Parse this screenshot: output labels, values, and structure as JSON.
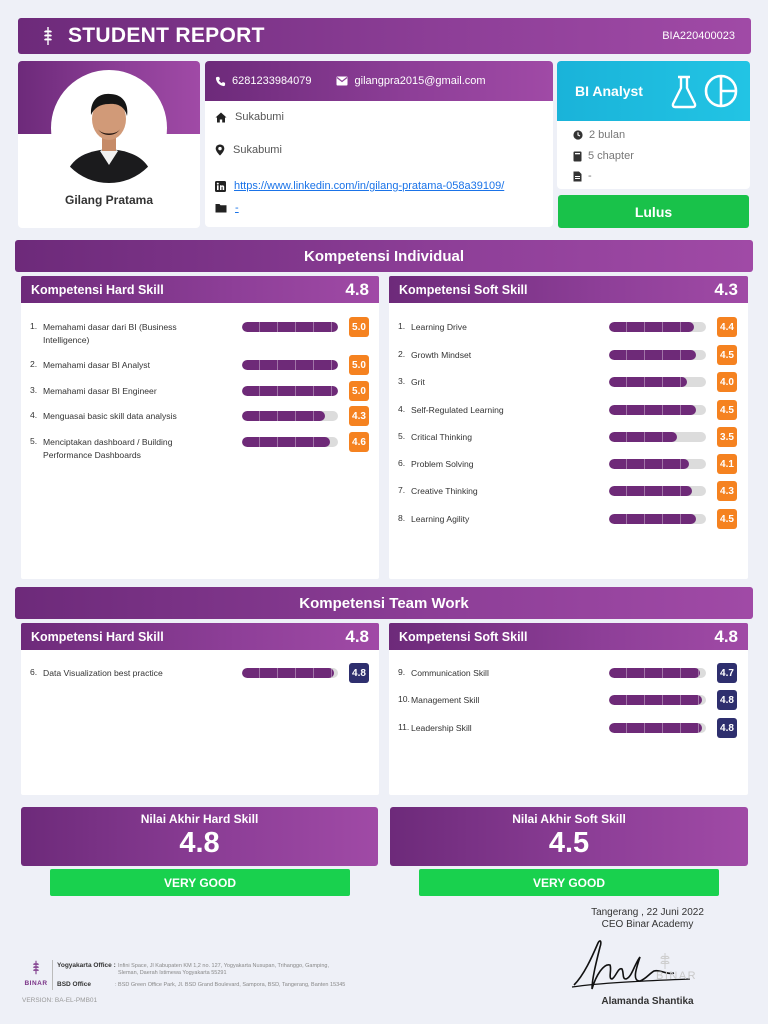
{
  "header": {
    "title": "STUDENT REPORT",
    "code": "BIA220400023",
    "logo_icon": "binar-wheat-icon"
  },
  "profile": {
    "name": "Gilang Pratama"
  },
  "contact": {
    "phone": "6281233984079",
    "email": "gilangpra2015@gmail.com",
    "home": "Sukabumi",
    "location": "Sukabumi",
    "linkedin": "https://www.linkedin.com/in/gilang-pratama-058a39109/",
    "folder": "-"
  },
  "program": {
    "name": "BI Analyst",
    "duration": "2 bulan",
    "chapters": "5 chapter",
    "extra": "-",
    "status": "Lulus"
  },
  "individual": {
    "title": "Kompetensi Individual",
    "hard": {
      "title": "Kompetensi Hard Skill",
      "score": "4.8",
      "items": [
        {
          "num": "1.",
          "label": "Memahami dasar dari BI (Business\nIntelligence)",
          "value": "5.0",
          "fraction": 1.0
        },
        {
          "num": "2.",
          "label": "Memahami dasar BI Analyst",
          "value": "5.0",
          "fraction": 1.0
        },
        {
          "num": "3.",
          "label": "Memahami dasar BI Engineer",
          "value": "5.0",
          "fraction": 1.0
        },
        {
          "num": "4.",
          "label": "Menguasai basic skill data analysis",
          "value": "4.3",
          "fraction": 0.86
        },
        {
          "num": "5.",
          "label": "Menciptakan dashboard / Building\nPerformance Dashboards",
          "value": "4.6",
          "fraction": 0.92
        }
      ]
    },
    "soft": {
      "title": "Kompetensi Soft Skill",
      "score": "4.3",
      "items": [
        {
          "num": "1.",
          "label": "Learning Drive",
          "value": "4.4",
          "fraction": 0.88
        },
        {
          "num": "2.",
          "label": "Growth Mindset",
          "value": "4.5",
          "fraction": 0.9
        },
        {
          "num": "3.",
          "label": "Grit",
          "value": "4.0",
          "fraction": 0.8
        },
        {
          "num": "4.",
          "label": "Self-Regulated Learning",
          "value": "4.5",
          "fraction": 0.9
        },
        {
          "num": "5.",
          "label": "Critical Thinking",
          "value": "3.5",
          "fraction": 0.7
        },
        {
          "num": "6.",
          "label": "Problem Solving",
          "value": "4.1",
          "fraction": 0.82
        },
        {
          "num": "7.",
          "label": "Creative Thinking",
          "value": "4.3",
          "fraction": 0.86
        },
        {
          "num": "8.",
          "label": "Learning Agility",
          "value": "4.5",
          "fraction": 0.9
        }
      ]
    }
  },
  "teamwork": {
    "title": "Kompetensi Team Work",
    "hard": {
      "title": "Kompetensi Hard Skill",
      "score": "4.8",
      "items": [
        {
          "num": "6.",
          "label": "Data Visualization best practice",
          "value": "4.8",
          "fraction": 0.96
        }
      ]
    },
    "soft": {
      "title": "Kompetensi Soft Skill",
      "score": "4.8",
      "items": [
        {
          "num": "9.",
          "label": "Communication Skill",
          "value": "4.7",
          "fraction": 0.94
        },
        {
          "num": "10.",
          "label": "Management Skill",
          "value": "4.8",
          "fraction": 0.96
        },
        {
          "num": "11.",
          "label": "Leadership Skill",
          "value": "4.8",
          "fraction": 0.96
        }
      ]
    }
  },
  "final": {
    "hard": {
      "title": "Nilai Akhir Hard Skill",
      "value": "4.8",
      "grade": "VERY GOOD"
    },
    "soft": {
      "title": "Nilai Akhir Soft Skill",
      "value": "4.5",
      "grade": "VERY GOOD"
    }
  },
  "colors": {
    "purple": "#7a3387",
    "orange_badge": "#f58220",
    "navy_badge": "#2e2f6e",
    "green": "#19c24a",
    "cyan": "#1ab3d9"
  },
  "footer": {
    "city_date": "Tangerang , 22 Juni 2022",
    "role": "CEO Binar Academy",
    "signer": "Alamanda Shantika",
    "logo_text": "BINAR",
    "yogya_label": "Yogyakarta Office :",
    "yogya_address": "Infini Space, Jl Kabupaten KM 1,2 no. 127, Yogyakarta Nusupan, Trihanggo, Gamping,\nSleman, Daerah Istimewa Yogyakarta 55291",
    "bsd_label": "BSD Office",
    "bsd_address": ": BSD Green Office Park, Jl. BSD Grand Boulevard, Sampora, BSD, Tangerang, Banten 15345",
    "version": "VERSION: BA-EL-PMB01"
  }
}
